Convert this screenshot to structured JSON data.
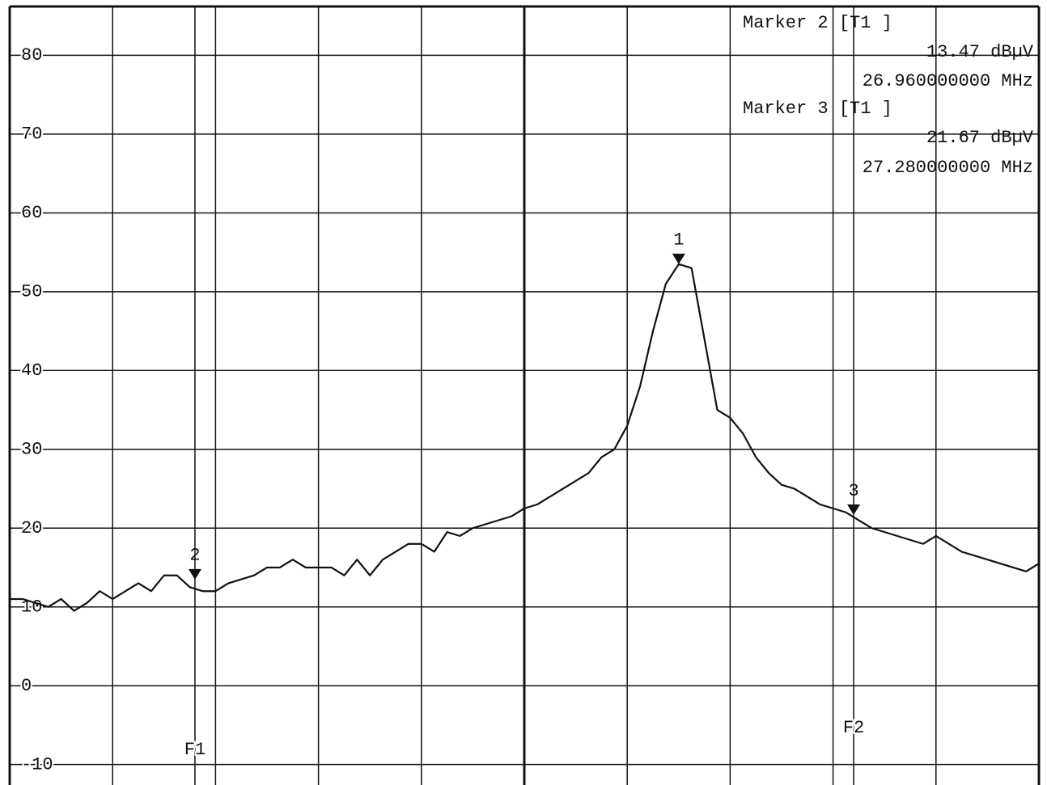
{
  "chart_data": {
    "type": "line",
    "readout": [
      "Marker 2 [T1 ]",
      "13.47 dBµV",
      "26.960000000 MHz",
      "Marker 3 [T1 ]",
      "21.67 dBµV",
      "27.280000000 MHz"
    ],
    "x": [
      26.87,
      26.87625,
      26.8825,
      26.88875,
      26.895,
      26.90125,
      26.9075,
      26.91375,
      26.92,
      26.92625,
      26.9325,
      26.93875,
      26.945,
      26.95125,
      26.9575,
      26.96375,
      26.97,
      26.97625,
      26.9825,
      26.98875,
      26.995,
      27.00125,
      27.0075,
      27.01375,
      27.02,
      27.02625,
      27.0325,
      27.03875,
      27.045,
      27.05125,
      27.0575,
      27.06375,
      27.07,
      27.07625,
      27.0825,
      27.08875,
      27.095,
      27.10125,
      27.1075,
      27.11375,
      27.12,
      27.12625,
      27.1325,
      27.13875,
      27.145,
      27.15125,
      27.1575,
      27.16375,
      27.17,
      27.17625,
      27.1825,
      27.18875,
      27.195,
      27.20125,
      27.2075,
      27.21375,
      27.22,
      27.22625,
      27.2325,
      27.23875,
      27.245,
      27.25125,
      27.2575,
      27.26375,
      27.27,
      27.27625,
      27.2825,
      27.28875,
      27.295,
      27.30125,
      27.3075,
      27.31375,
      27.32,
      27.32625,
      27.3325,
      27.33875,
      27.345,
      27.35125,
      27.3575,
      27.36375,
      27.37
    ],
    "series": [
      {
        "color": "#111111",
        "values": [
          11,
          11,
          10.5,
          10,
          11,
          9.5,
          10.5,
          12,
          11,
          12,
          13,
          12,
          14,
          14,
          12.5,
          12,
          12,
          13,
          13.5,
          14,
          15,
          15,
          16,
          15,
          15,
          15,
          14,
          16,
          14,
          16,
          17,
          18,
          18,
          17,
          19.5,
          19,
          20,
          20.5,
          21,
          21.5,
          22.5,
          23,
          24,
          25,
          26,
          27,
          29,
          30,
          33,
          38,
          45,
          51,
          53.5,
          53,
          44,
          35,
          34,
          32,
          29,
          27,
          25.5,
          25,
          24,
          23,
          22.5,
          22,
          21,
          20,
          19.5,
          19,
          18.5,
          18,
          19,
          18,
          17,
          16.5,
          16,
          15.5,
          15,
          14.5,
          15.5
        ]
      }
    ],
    "markers": [
      {
        "label": "1",
        "x": 27.195,
        "y": 53.5
      },
      {
        "label": "2",
        "x": 26.96,
        "y": 13.47
      },
      {
        "label": "3",
        "x": 27.28,
        "y": 21.67
      }
    ],
    "frequency_lines": [
      {
        "label": "F1",
        "x": 26.96
      },
      {
        "label": "F2",
        "x": 27.28
      }
    ],
    "xlim": [
      26.87,
      27.37
    ],
    "xticks": [
      26.87,
      26.92,
      26.97,
      27.02,
      27.07,
      27.12,
      27.17,
      27.22,
      27.27,
      27.32,
      27.37
    ],
    "ylim": [
      -12.6,
      86.2
    ],
    "yticks": [
      80,
      70,
      60,
      50,
      40,
      30,
      20,
      10,
      0,
      -10
    ],
    "grid": true
  }
}
